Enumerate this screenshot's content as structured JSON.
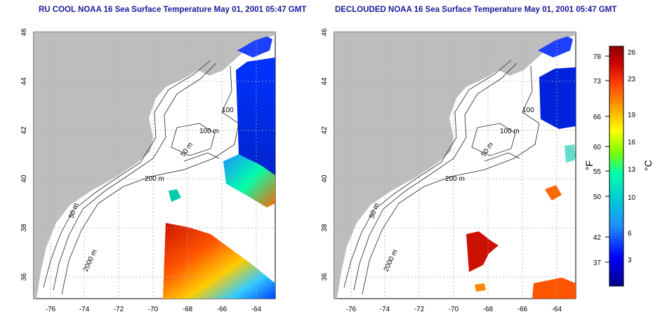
{
  "maps": [
    {
      "title": "RU COOL NOAA 16 Sea Surface Temperature May 01, 2001 05:47 GMT",
      "contour_labels": [
        "100",
        "100 m",
        "50 m",
        "200 m",
        "50 m",
        "2000 m"
      ]
    },
    {
      "title": "DECLOUDED NOAA 16 Sea Surface Temperature May 01, 2001 05:47 GMT",
      "contour_labels": [
        "100",
        "100 m",
        "50 m",
        "200 m",
        "50 m",
        "2000 m"
      ]
    }
  ],
  "axes": {
    "lon_ticks": [
      "-76",
      "-74",
      "-72",
      "-70",
      "-68",
      "-66",
      "-64"
    ],
    "lat_ticks": [
      "46",
      "44",
      "42",
      "40",
      "38",
      "36"
    ]
  },
  "colorbar": {
    "fahrenheit_label": "°F",
    "celsius_label": "°C",
    "fahrenheit_ticks": [
      "78",
      "73",
      "66",
      "60",
      "55",
      "50",
      "42",
      "37"
    ],
    "celsius_ticks": [
      "26",
      "23",
      "19",
      "16",
      "13",
      "10",
      "6",
      "3"
    ]
  },
  "colors": {
    "land": "#bdbdbd",
    "title": "#1a1a99",
    "gridline": "#aaaaaa",
    "contour": "#222222",
    "scale": [
      "#00008b",
      "#0000ff",
      "#1e90ff",
      "#00ced1",
      "#00ffaa",
      "#7fff00",
      "#ffff00",
      "#ffa500",
      "#ff4500",
      "#cc0000",
      "#8b0000"
    ]
  }
}
